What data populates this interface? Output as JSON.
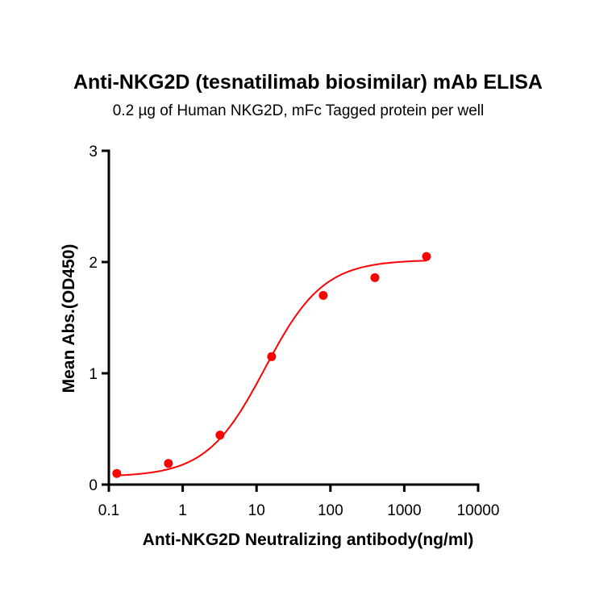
{
  "chart_data": {
    "type": "scatter",
    "title": "Anti-NKG2D (tesnatilimab biosimilar) mAb ELISA",
    "subtitle": "0.2 µg of Human NKG2D, mFc Tagged protein per well",
    "xlabel": "Anti-NKG2D Neutralizing antibody(ng/ml)",
    "ylabel": "Mean Abs.(OD450)",
    "xscale": "log",
    "xlim": [
      0.1,
      10000
    ],
    "ylim": [
      0,
      3
    ],
    "xticks": [
      "0.1",
      "1",
      "10",
      "100",
      "1000",
      "10000"
    ],
    "yticks": [
      "0",
      "1",
      "2",
      "3"
    ],
    "grid": false,
    "color": "#ff0000",
    "series": [
      {
        "x": [
          0.128,
          0.64,
          3.2,
          16,
          80,
          400,
          2000
        ],
        "y": [
          0.1,
          0.19,
          0.445,
          1.15,
          1.7,
          1.86,
          2.05
        ]
      }
    ],
    "fit": {
      "type": "4PL sigmoid",
      "bottom": 0.07,
      "top": 2.02,
      "ec50": 13,
      "hill": 1.1
    }
  }
}
